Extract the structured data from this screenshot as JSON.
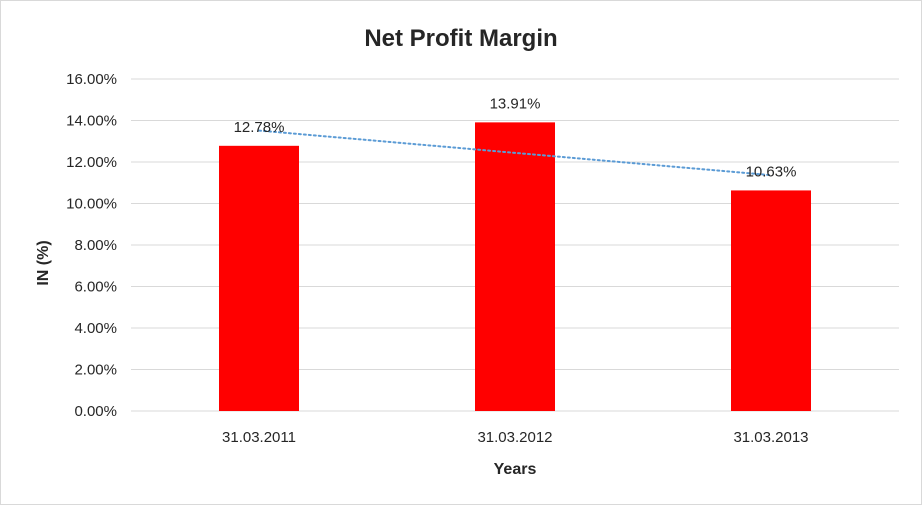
{
  "chart_data": {
    "type": "bar",
    "title": "Net Profit Margin",
    "xlabel": "Years",
    "ylabel": "IN (%)",
    "categories": [
      "31.03.2011",
      "31.03.2012",
      "31.03.2013"
    ],
    "values": [
      12.78,
      13.91,
      10.63
    ],
    "data_labels": [
      "12.78%",
      "13.91%",
      "10.63%"
    ],
    "ylim": [
      0,
      16
    ],
    "y_ticks": [
      0,
      2,
      4,
      6,
      8,
      10,
      12,
      14,
      16
    ],
    "y_tick_labels": [
      "0.00%",
      "2.00%",
      "4.00%",
      "6.00%",
      "8.00%",
      "10.00%",
      "12.00%",
      "14.00%",
      "16.00%"
    ],
    "grid": true,
    "legend": "none",
    "trendline": {
      "type": "linear",
      "style": "dotted",
      "color": "#5b9bd5"
    },
    "colors": {
      "bar": "#ff0000",
      "gridline": "#d9d9d9",
      "text": "#262626",
      "trendline": "#5b9bd5"
    }
  }
}
